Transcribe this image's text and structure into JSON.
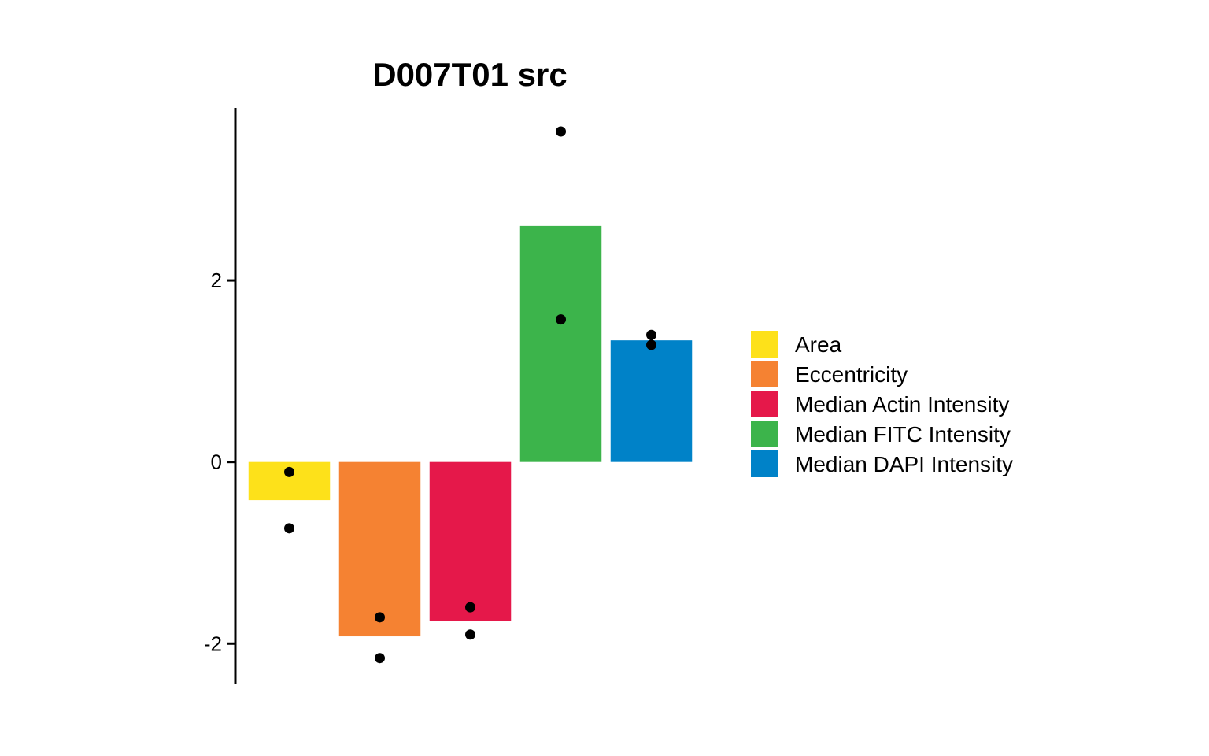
{
  "chart_data": {
    "type": "bar",
    "title": "D007T01 src",
    "xlabel": "",
    "ylabel": "",
    "ylim": [
      -2.44,
      3.9
    ],
    "yticks": [
      -2,
      0,
      2
    ],
    "ytick_labels": [
      "-2",
      "0",
      "2"
    ],
    "categories": [
      "Area",
      "Eccentricity",
      "Median Actin Intensity",
      "Median FITC Intensity",
      "Median DAPI Intensity"
    ],
    "values": [
      -0.42,
      -1.92,
      -1.75,
      2.6,
      1.34
    ],
    "points": [
      [
        -0.11,
        -0.73
      ],
      [
        -1.71,
        -2.16
      ],
      [
        -1.6,
        -1.9
      ],
      [
        3.64,
        1.57
      ],
      [
        1.4,
        1.29
      ]
    ],
    "colors": [
      "#FDE11A",
      "#F58232",
      "#E5184A",
      "#3CB44B",
      "#0082C8"
    ],
    "point_color": "#000000",
    "grid": false,
    "legend": {
      "placement": "right",
      "entries": [
        "Area",
        "Eccentricity",
        "Median Actin Intensity",
        "Median FITC Intensity",
        "Median DAPI Intensity"
      ]
    }
  }
}
